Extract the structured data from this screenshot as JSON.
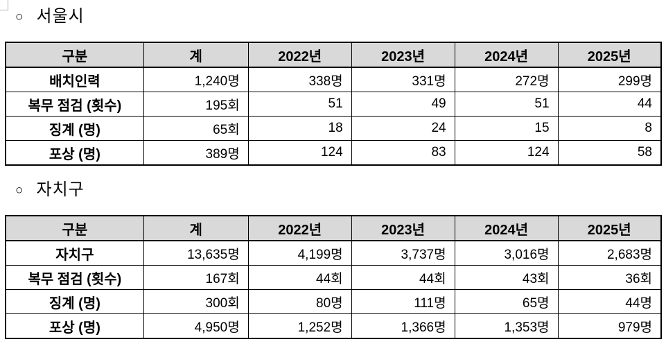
{
  "colors": {
    "header_bg": "#d9d9d9",
    "border": "#000000",
    "text": "#000000",
    "background": "#ffffff"
  },
  "sections": [
    {
      "bullet": "○",
      "title": "서울시",
      "table": {
        "headers": [
          "구분",
          "계",
          "2022년",
          "2023년",
          "2024년",
          "2025년"
        ],
        "rows": [
          {
            "label": "배치인력",
            "values": [
              "1,240명",
              "338명",
              "331명",
              "272명",
              "299명"
            ]
          },
          {
            "label": "복무 점검 (횟수)",
            "values": [
              "195회",
              "51",
              "49",
              "51",
              "44"
            ]
          },
          {
            "label": "징계 (명)",
            "values": [
              "65회",
              "18",
              "24",
              "15",
              "8"
            ]
          },
          {
            "label": "포상 (명)",
            "values": [
              "389명",
              "124",
              "83",
              "124",
              "58"
            ]
          }
        ]
      }
    },
    {
      "bullet": "○",
      "title": "자치구",
      "table": {
        "headers": [
          "구분",
          "계",
          "2022년",
          "2023년",
          "2024년",
          "2025년"
        ],
        "rows": [
          {
            "label": "자치구",
            "values": [
              "13,635명",
              "4,199명",
              "3,737명",
              "3,016명",
              "2,683명"
            ]
          },
          {
            "label": "복무 점검 (횟수)",
            "values": [
              "167회",
              "44회",
              "44회",
              "43회",
              "36회"
            ]
          },
          {
            "label": "징계 (명)",
            "values": [
              "300회",
              "80명",
              "111명",
              "65명",
              "44명"
            ]
          },
          {
            "label": "포상 (명)",
            "values": [
              "4,950명",
              "1,252명",
              "1,366명",
              "1,353명",
              "979명"
            ]
          }
        ]
      }
    }
  ]
}
